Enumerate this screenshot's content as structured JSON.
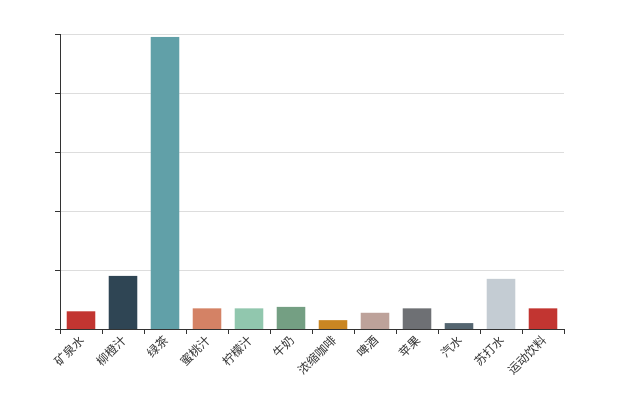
{
  "chart_data": {
    "type": "bar",
    "title": "",
    "xlabel": "",
    "ylabel": "",
    "categories": [
      "矿泉水",
      "柳橙汁",
      "绿茶",
      "蜜桃汁",
      "柠檬汁",
      "牛奶",
      "浓缩咖啡",
      "啤酒",
      "苹果",
      "汽水",
      "苏打水",
      "运动饮料"
    ],
    "values": [
      6,
      18,
      99,
      7,
      7,
      7.5,
      3,
      5.5,
      7,
      2,
      17,
      7
    ],
    "colors": [
      "#c23531",
      "#2f4554",
      "#61a0a8",
      "#d48265",
      "#91c7ae",
      "#749f83",
      "#ca8622",
      "#bda29a",
      "#6e7074",
      "#546570",
      "#c4ccd3",
      "#c23531"
    ],
    "ylim": [
      0,
      100
    ],
    "yticks": [
      0,
      20,
      40,
      60,
      80,
      100
    ],
    "grid": true,
    "legend": "none",
    "ytick_labels_visible": false
  }
}
